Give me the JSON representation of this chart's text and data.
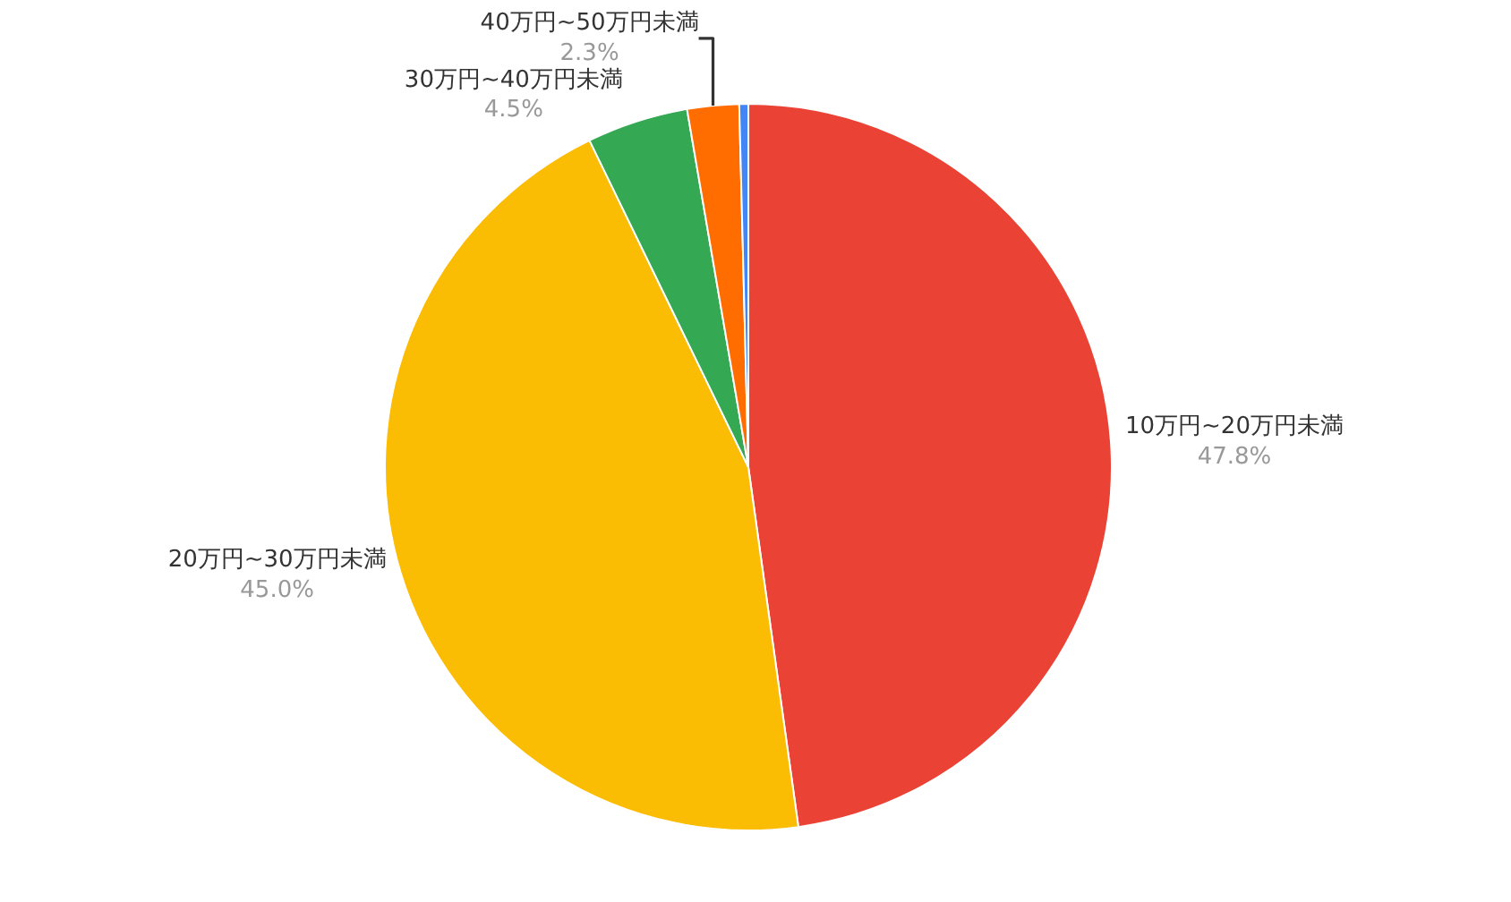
{
  "chart_data": {
    "type": "pie",
    "categories": [
      "10万円~20万円未満",
      "20万円~30万円未満",
      "30万円~40万円未満",
      "40万円~50万円未満",
      null
    ],
    "values": [
      47.8,
      45.0,
      4.5,
      2.3,
      0.4
    ],
    "colors": [
      "#ea4335",
      "#fbbc04",
      "#34a853",
      "#ff6d01",
      "#4285f4"
    ],
    "value_labels": [
      "47.8%",
      "45.0%",
      "4.5%",
      "2.3%",
      null
    ],
    "legend": false
  }
}
